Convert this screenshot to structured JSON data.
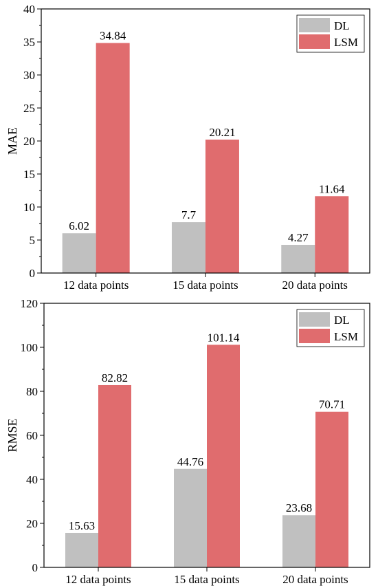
{
  "chart_data": [
    {
      "type": "bar",
      "categories": [
        "12 data points",
        "15 data points",
        "20 data points"
      ],
      "series": [
        {
          "name": "DL",
          "values": [
            6.02,
            7.7,
            4.27
          ],
          "labels": [
            "6.02",
            "7.7",
            "4.27"
          ],
          "color": "#c0c0c0"
        },
        {
          "name": "LSM",
          "values": [
            34.84,
            20.21,
            11.64
          ],
          "labels": [
            "34.84",
            "20.21",
            "11.64"
          ],
          "color": "#e06c6e"
        }
      ],
      "ylabel": "MAE",
      "ylim": [
        0,
        40
      ],
      "yticks": [
        0,
        5,
        10,
        15,
        20,
        25,
        30,
        35,
        40
      ],
      "grid": false,
      "legend_position": "top-right"
    },
    {
      "type": "bar",
      "categories": [
        "12 data points",
        "15 data points",
        "20 data points"
      ],
      "series": [
        {
          "name": "DL",
          "values": [
            15.63,
            44.76,
            23.68
          ],
          "labels": [
            "15.63",
            "44.76",
            "23.68"
          ],
          "color": "#c0c0c0"
        },
        {
          "name": "LSM",
          "values": [
            82.82,
            101.14,
            70.71
          ],
          "labels": [
            "82.82",
            "101.14",
            "70.71"
          ],
          "color": "#e06c6e"
        }
      ],
      "ylabel": "RMSE",
      "ylim": [
        0,
        120
      ],
      "yticks": [
        0,
        20,
        40,
        60,
        80,
        100,
        120
      ],
      "grid": false,
      "legend_position": "top-right"
    }
  ]
}
